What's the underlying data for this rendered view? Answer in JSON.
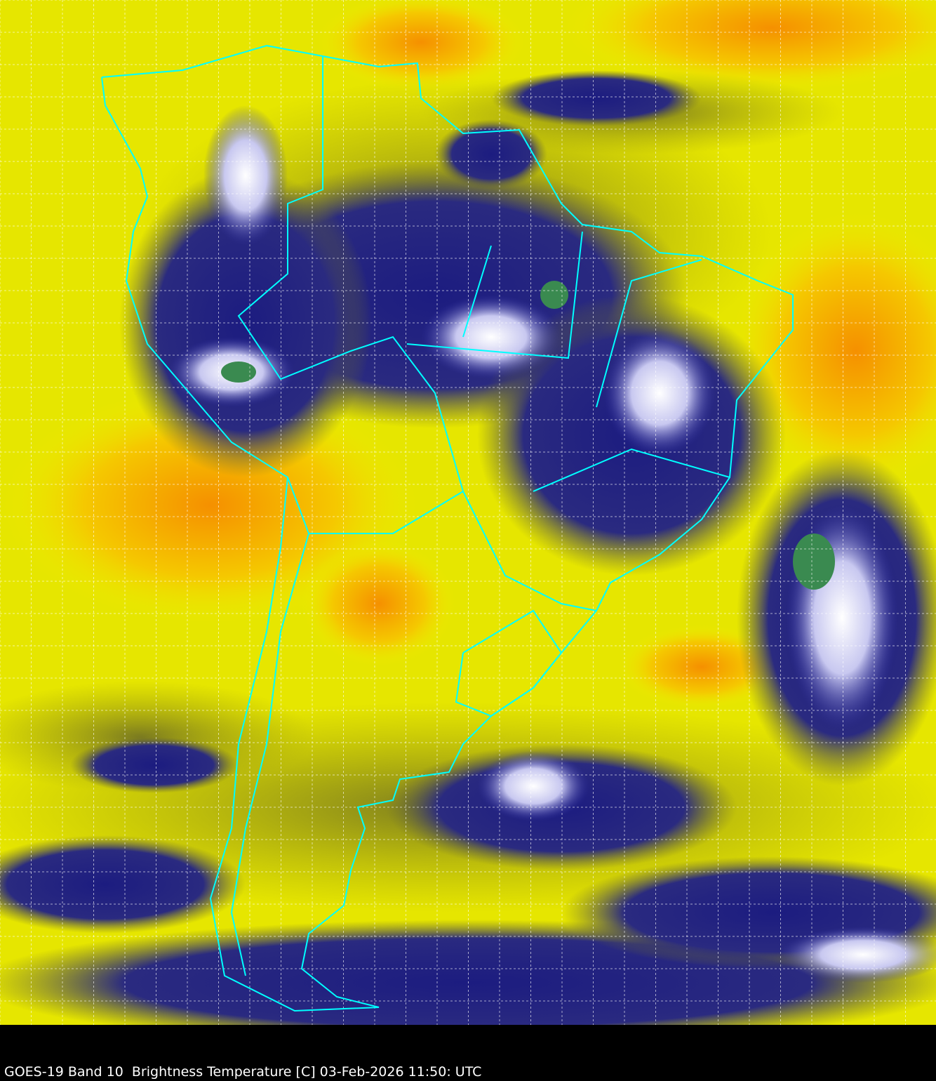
{
  "caption": "GOES-19 Band 10  Brightness Temperature [C] 03-Feb-2026 11:50: UTC",
  "colors": {
    "warm_dry": "#f5a000",
    "dry": "#eeee00",
    "moist": "#8c8c20",
    "cold": "#1c1c80",
    "coldest": "#ffffff",
    "cloud_tops": "#3a8a50",
    "borders": "#00ffff",
    "grid": "#ffffff",
    "background": "#000000"
  }
}
